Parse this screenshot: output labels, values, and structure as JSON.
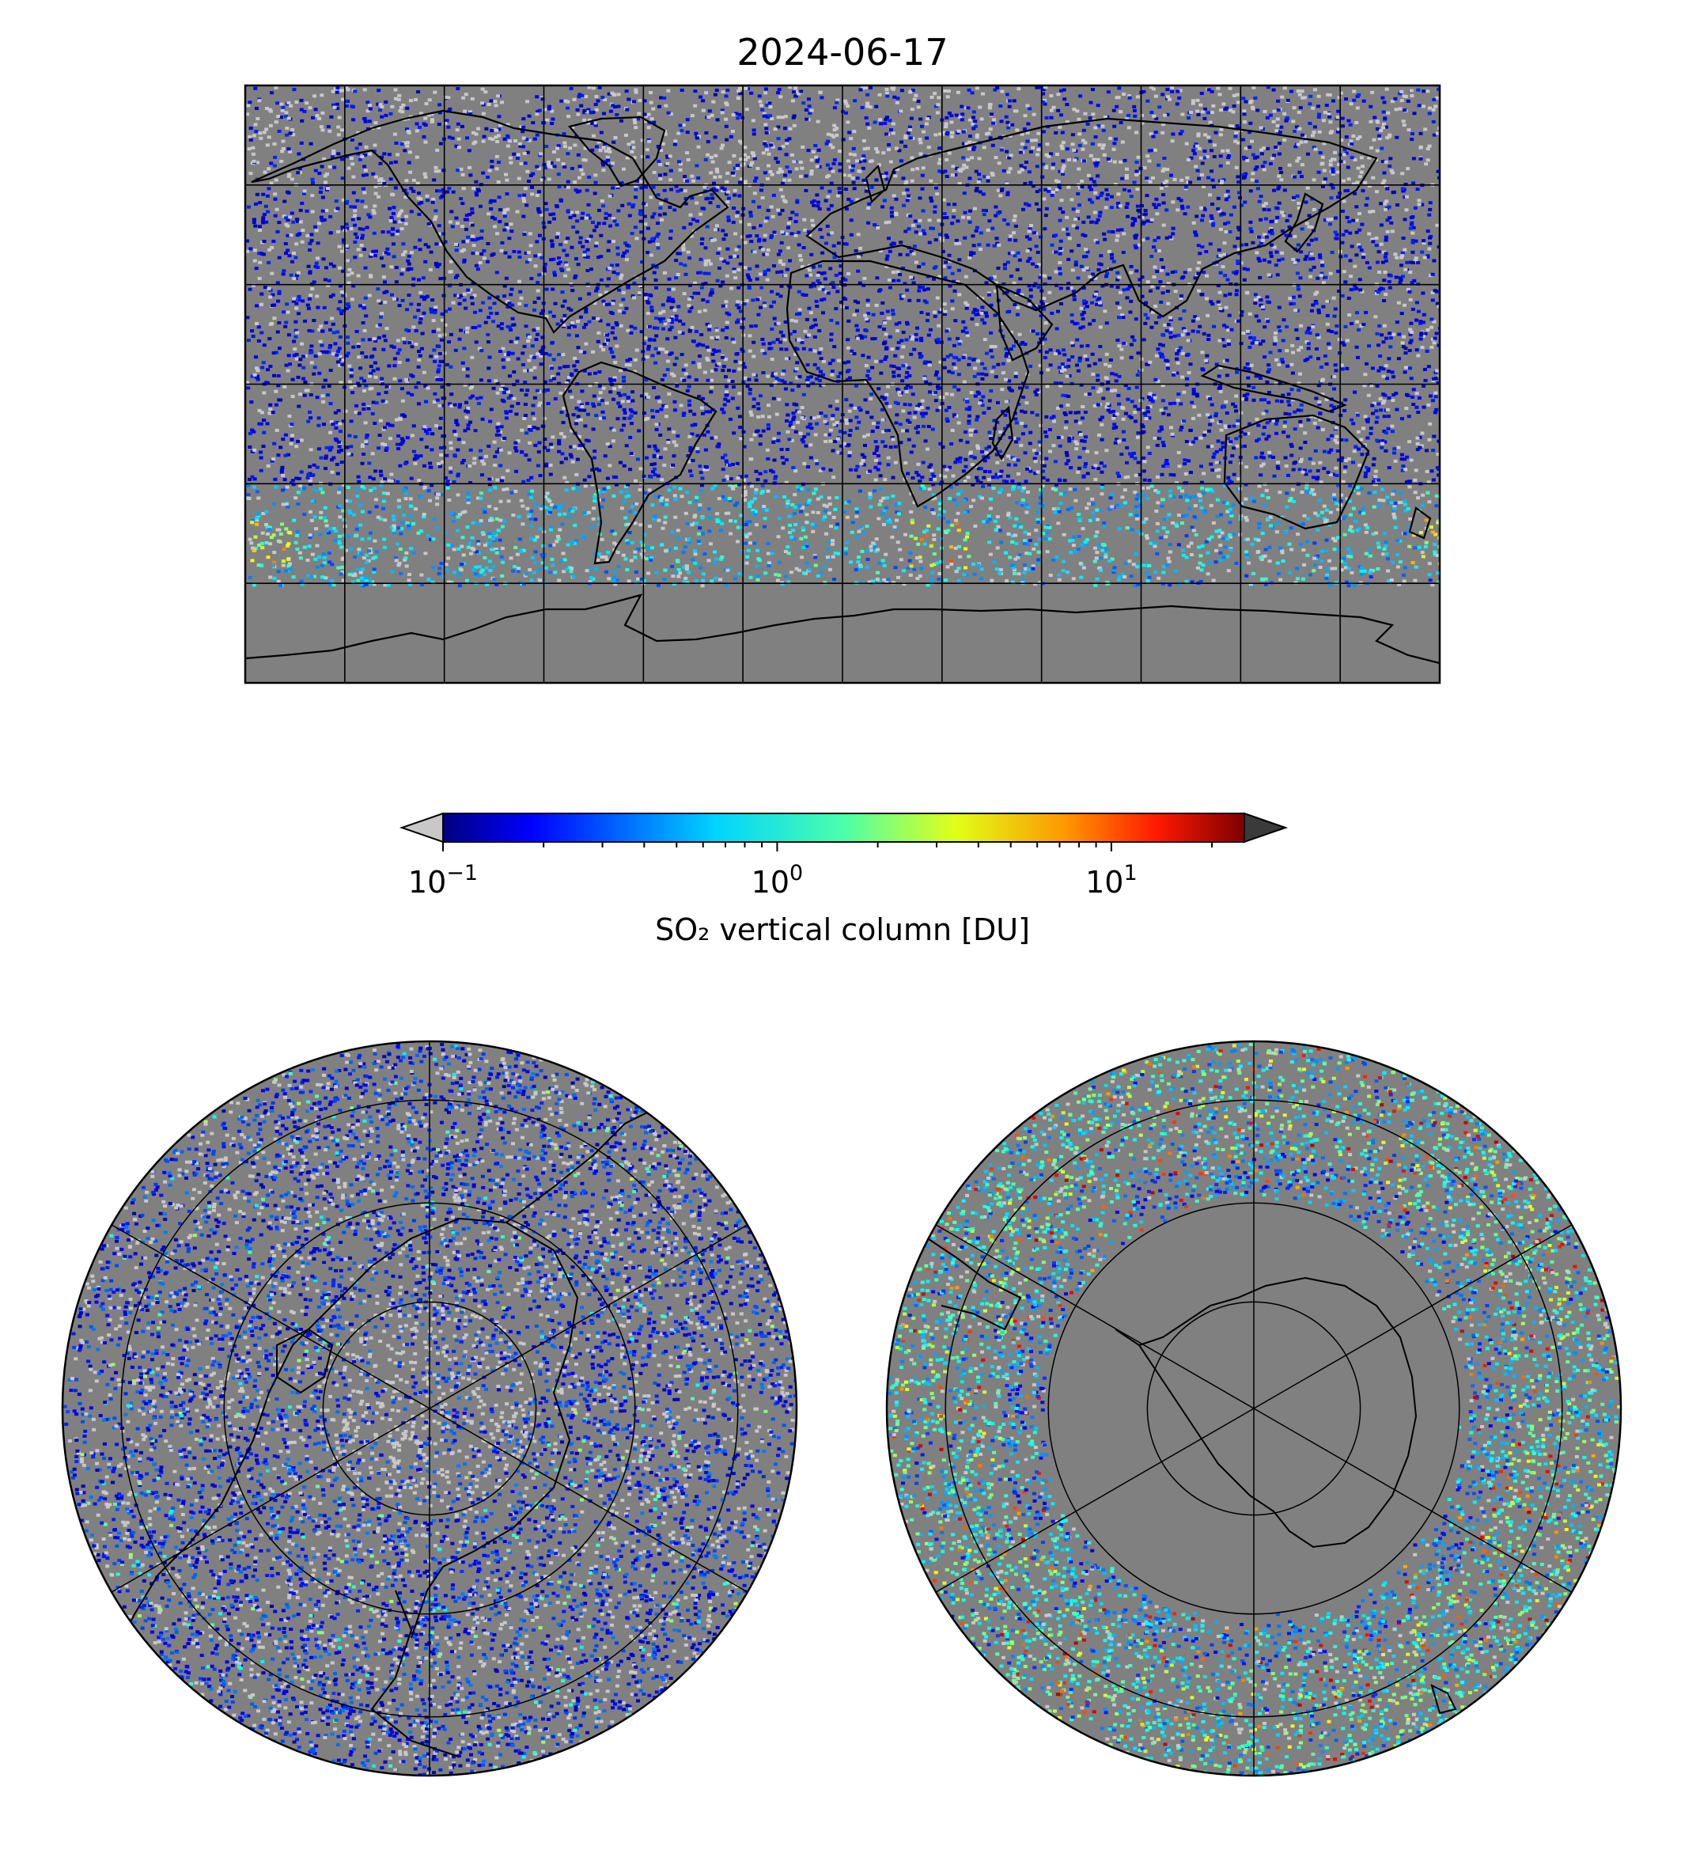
{
  "title": "2024-06-17",
  "colorbar": {
    "label": "SO₂ vertical column [DU]",
    "scale": "log",
    "range": [
      0.1,
      25
    ],
    "colormap": "jet",
    "extend_min_color": "#c8c8c8",
    "extend_max_color": "#3a3a3a",
    "ticks": [
      {
        "base": "10",
        "exp": "−1",
        "value": 0.1
      },
      {
        "base": "10",
        "exp": "0",
        "value": 1
      },
      {
        "base": "10",
        "exp": "1",
        "value": 10
      }
    ]
  },
  "panels": [
    {
      "name": "global-map",
      "projection": "plate-carree",
      "graticule_deg": 30
    },
    {
      "name": "north-polar-map",
      "projection": "north-polar-stereographic",
      "graticule_deg": 30
    },
    {
      "name": "south-polar-map",
      "projection": "south-polar-stereographic",
      "graticule_deg": 30
    }
  ],
  "colors": {
    "no_data": "#808080",
    "below_min": "#c8c8c8",
    "coastline": "#000000"
  }
}
